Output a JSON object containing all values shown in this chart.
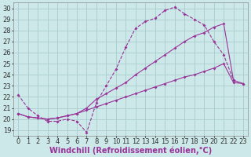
{
  "xlabel": "Windchill (Refroidissement éolien,°C)",
  "bg_color": "#cce8e8",
  "line_color": "#993399",
  "grid_color": "#aacccc",
  "xlim": [
    -0.5,
    23.5
  ],
  "ylim": [
    18.5,
    30.5
  ],
  "xticks": [
    0,
    1,
    2,
    3,
    4,
    5,
    6,
    7,
    8,
    9,
    10,
    11,
    12,
    13,
    14,
    15,
    16,
    17,
    18,
    19,
    20,
    21,
    22,
    23
  ],
  "yticks": [
    19,
    20,
    21,
    22,
    23,
    24,
    25,
    26,
    27,
    28,
    29,
    30
  ],
  "curves": [
    {
      "x": [
        0,
        1,
        2,
        3,
        4,
        5,
        6,
        7,
        8,
        9,
        10,
        11,
        12,
        13,
        14,
        15,
        16,
        17,
        18,
        19,
        20,
        21,
        22
      ],
      "y": [
        22.2,
        21.0,
        20.3,
        19.8,
        19.8,
        20.0,
        19.8,
        18.8,
        21.5,
        23.0,
        24.5,
        26.5,
        28.2,
        28.8,
        29.1,
        29.8,
        30.1,
        29.5,
        29.0,
        28.5,
        27.0,
        25.8,
        23.5
      ]
    },
    {
      "x": [
        0,
        1,
        2,
        3,
        4,
        5,
        6,
        7,
        8,
        9,
        10,
        11,
        12,
        13,
        14,
        15,
        16,
        17,
        18,
        19,
        20,
        21,
        22,
        23
      ],
      "y": [
        20.5,
        20.2,
        20.1,
        20.0,
        20.1,
        20.3,
        20.5,
        21.0,
        21.8,
        22.3,
        22.8,
        23.3,
        24.0,
        24.6,
        25.2,
        25.8,
        26.4,
        27.0,
        27.5,
        27.8,
        28.3,
        28.6,
        23.5,
        23.2
      ]
    },
    {
      "x": [
        0,
        1,
        2,
        3,
        4,
        5,
        6,
        7,
        8,
        9,
        10,
        11,
        12,
        13,
        14,
        15,
        16,
        17,
        18,
        19,
        20,
        21,
        22,
        23
      ],
      "y": [
        20.5,
        20.2,
        20.1,
        20.0,
        20.1,
        20.3,
        20.5,
        20.8,
        21.1,
        21.4,
        21.7,
        22.0,
        22.3,
        22.6,
        22.9,
        23.2,
        23.5,
        23.8,
        24.0,
        24.3,
        24.6,
        25.0,
        23.3,
        23.2
      ]
    }
  ],
  "xlabel_fontsize": 7,
  "tick_fontsize": 6,
  "xlabel_color": "#993399",
  "spine_color": "#888888"
}
